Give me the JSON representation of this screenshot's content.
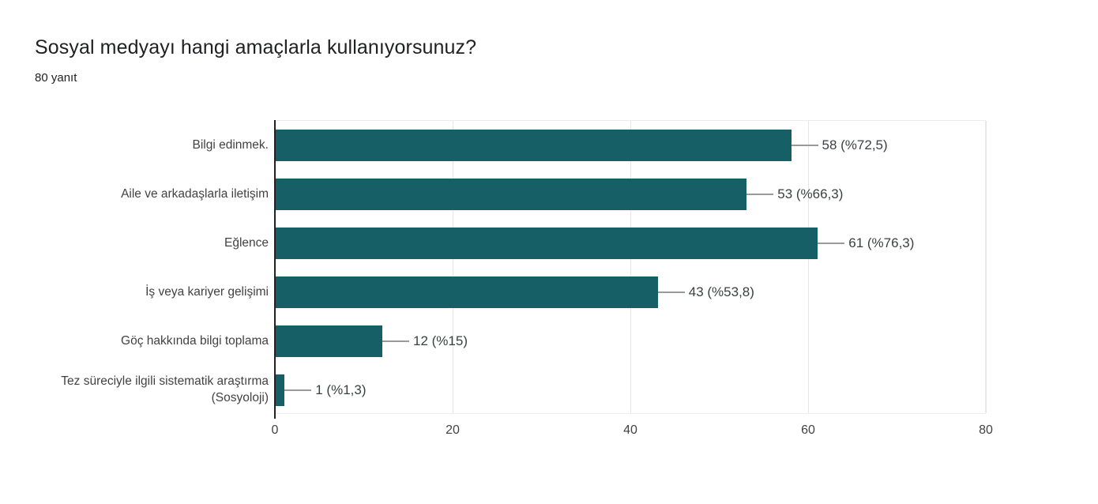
{
  "header": {
    "title": "Sosyal medyayı hangi amaçlarla kullanıyorsunuz?",
    "subtitle": "80 yanıt"
  },
  "chart_data": {
    "type": "bar",
    "orientation": "horizontal",
    "title": "Sosyal medyayı hangi amaçlarla kullanıyorsunuz?",
    "subtitle": "80 yanıt",
    "categories": [
      "Bilgi edinmek.",
      "Aile ve arkadaşlarla iletişim",
      "Eğlence",
      "İş veya kariyer gelişimi",
      "Göç hakkında bilgi toplama",
      "Tez süreciyle ilgili sistematik araştırma (Sosyoloji)"
    ],
    "values": [
      58,
      53,
      61,
      43,
      12,
      1
    ],
    "value_labels": [
      "58 (%72,5)",
      "53 (%66,3)",
      "61 (%76,3)",
      "43 (%53,8)",
      "12 (%15)",
      "1 (%1,3)"
    ],
    "xlim": [
      0,
      80
    ],
    "x_ticks": [
      0,
      20,
      40,
      60,
      80
    ],
    "grid": true,
    "bar_color": "#165f66",
    "axis_color": "#212121",
    "gridline_color": "#e6e6e6",
    "value_label_color": "#3c4043",
    "category_label_color": "#424242"
  }
}
